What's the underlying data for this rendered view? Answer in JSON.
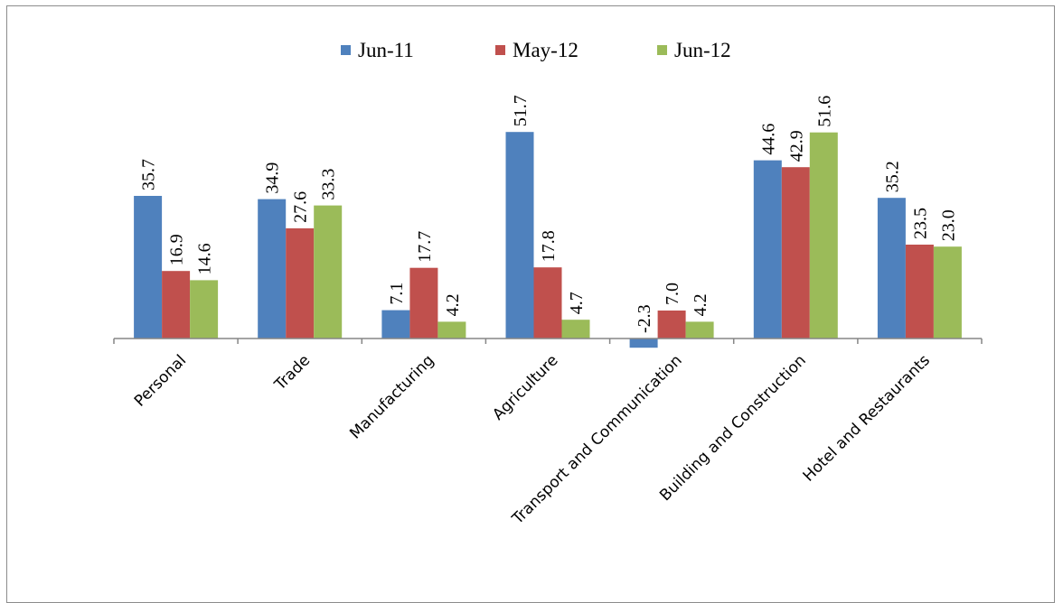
{
  "chart_data": {
    "type": "bar",
    "title": "",
    "xlabel": "",
    "ylabel": "",
    "categories": [
      "Personal",
      "Trade",
      "Manufacturing",
      "Agriculture",
      "Transport and Communication",
      "Building and Construction",
      "Hotel and Restaurants"
    ],
    "series": [
      {
        "name": "Jun-11",
        "color": "#4f81bd",
        "values": [
          35.7,
          34.9,
          7.1,
          51.7,
          -2.3,
          44.6,
          35.2
        ]
      },
      {
        "name": "May-12",
        "color": "#c0504d",
        "values": [
          16.9,
          27.6,
          17.7,
          17.8,
          7.0,
          42.9,
          23.5
        ]
      },
      {
        "name": "Jun-12",
        "color": "#9bbb59",
        "values": [
          14.6,
          33.3,
          4.2,
          4.7,
          4.2,
          51.6,
          23.0
        ]
      }
    ],
    "ylim": [
      -2.3,
      51.7
    ],
    "grid": false,
    "legend_position": "top"
  }
}
